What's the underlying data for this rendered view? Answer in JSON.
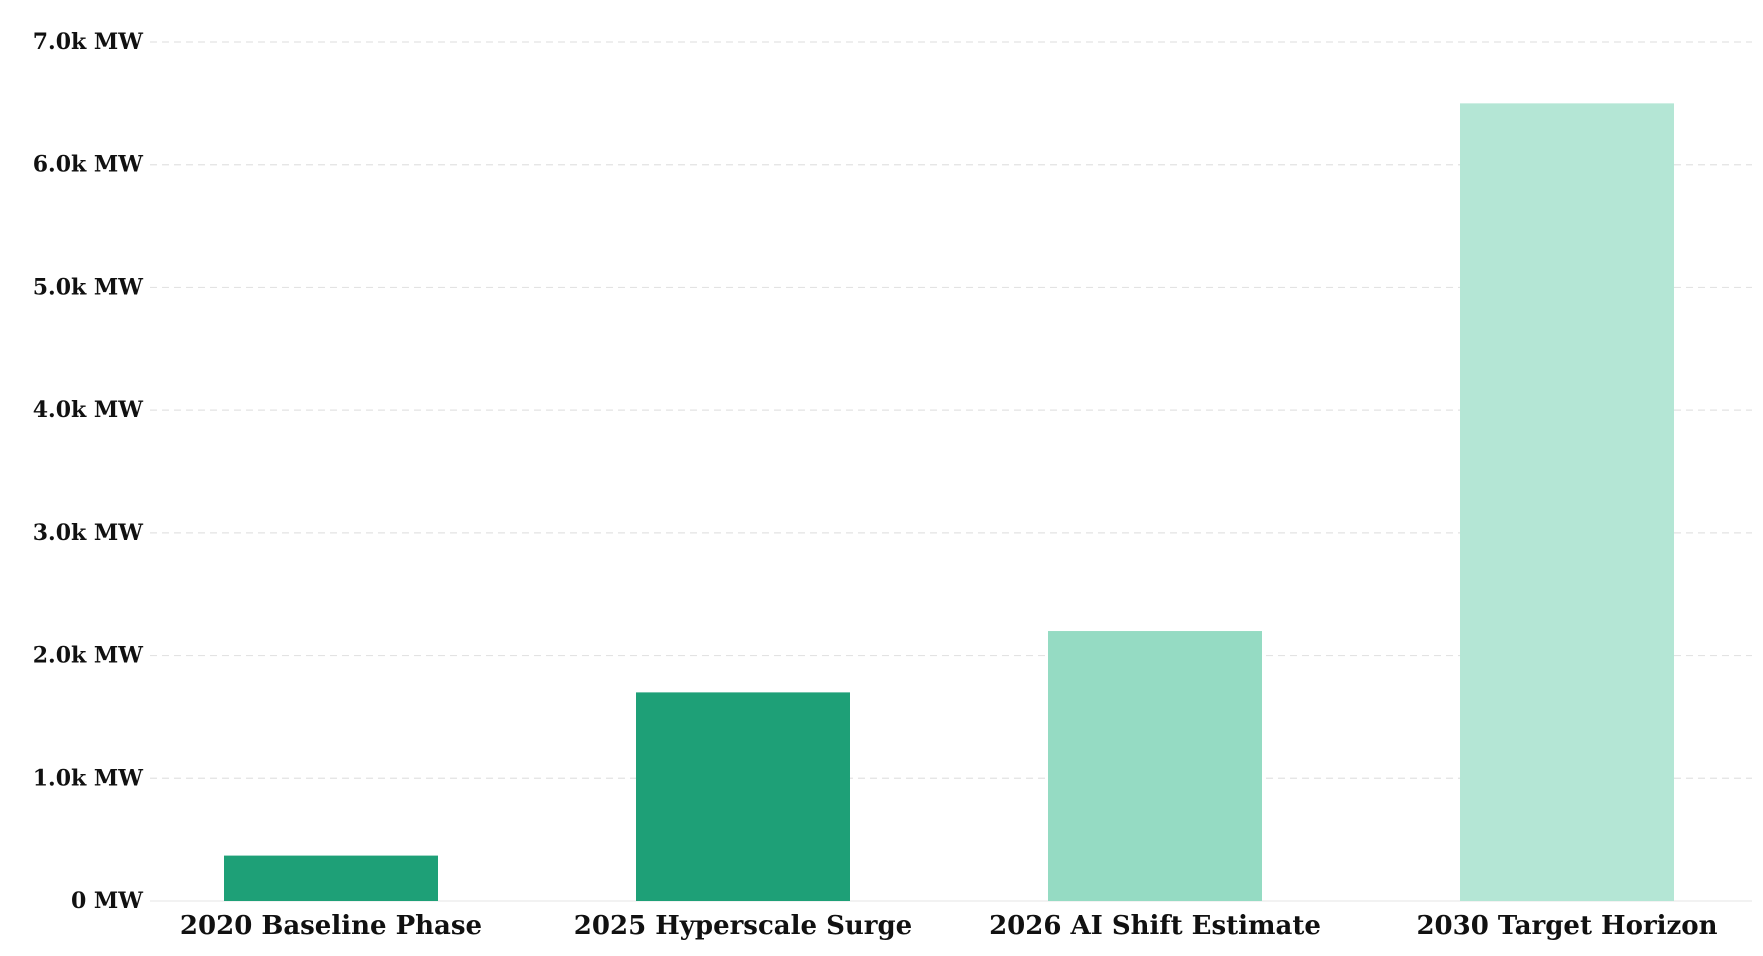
{
  "chart_data": {
    "type": "bar",
    "categories": [
      "2020 Baseline Phase",
      "2025 Hyperscale Surge",
      "2026 AI Shift Estimate",
      "2030 Target Horizon"
    ],
    "values": [
      370,
      1700,
      2200,
      6500
    ],
    "bar_colors": [
      "#1ea077",
      "#1ea077",
      "#95dbc3",
      "#b4e6d5"
    ],
    "ylim": [
      0,
      7000
    ],
    "yticks": [
      0,
      1000,
      2000,
      3000,
      4000,
      5000,
      6000,
      7000
    ],
    "ytick_labels": [
      "0 MW",
      "1.0k MW",
      "2.0k MW",
      "3.0k MW",
      "4.0k MW",
      "5.0k MW",
      "6.0k MW",
      "7.0k MW"
    ],
    "grid": true,
    "legend": "none",
    "title": "",
    "xlabel": "",
    "ylabel": ""
  }
}
